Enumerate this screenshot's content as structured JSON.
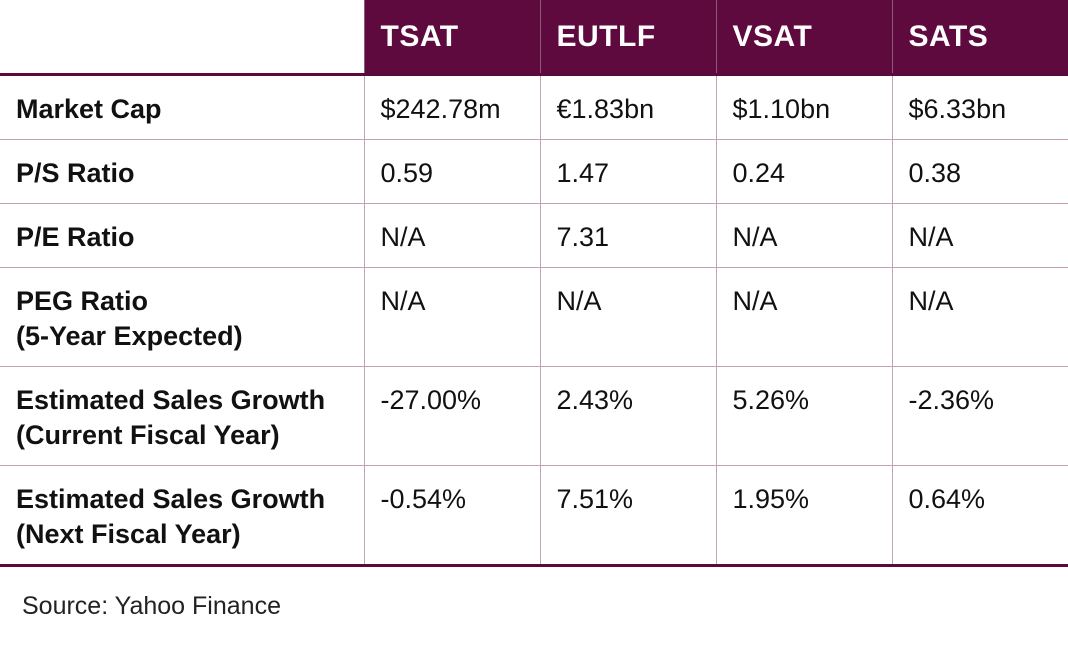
{
  "table": {
    "columns": [
      "",
      "TSAT",
      "EUTLF",
      "VSAT",
      "SATS"
    ],
    "rows": [
      {
        "label": "Market Cap",
        "values": [
          "$242.78m",
          "€1.83bn",
          "$1.10bn",
          "$6.33bn"
        ]
      },
      {
        "label": "P/S Ratio",
        "values": [
          "0.59",
          "1.47",
          "0.24",
          "0.38"
        ]
      },
      {
        "label": "P/E Ratio",
        "values": [
          "N/A",
          "7.31",
          "N/A",
          "N/A"
        ]
      },
      {
        "label": "PEG Ratio\n(5-Year Expected)",
        "values": [
          "N/A",
          "N/A",
          "N/A",
          "N/A"
        ]
      },
      {
        "label": "Estimated Sales Growth\n(Current Fiscal Year)",
        "values": [
          "-27.00%",
          "2.43%",
          "5.26%",
          "-2.36%"
        ]
      },
      {
        "label": "Estimated Sales Growth\n(Next Fiscal Year)",
        "values": [
          "-0.54%",
          "7.51%",
          "1.95%",
          "0.64%"
        ]
      }
    ]
  },
  "footer": {
    "source": "Source: Yahoo Finance"
  },
  "colors": {
    "header_bg": "#5e0a3e",
    "header_text": "#ffffff",
    "grid_line": "#c4a2b6",
    "heavy_rule": "#5a0b3d"
  }
}
